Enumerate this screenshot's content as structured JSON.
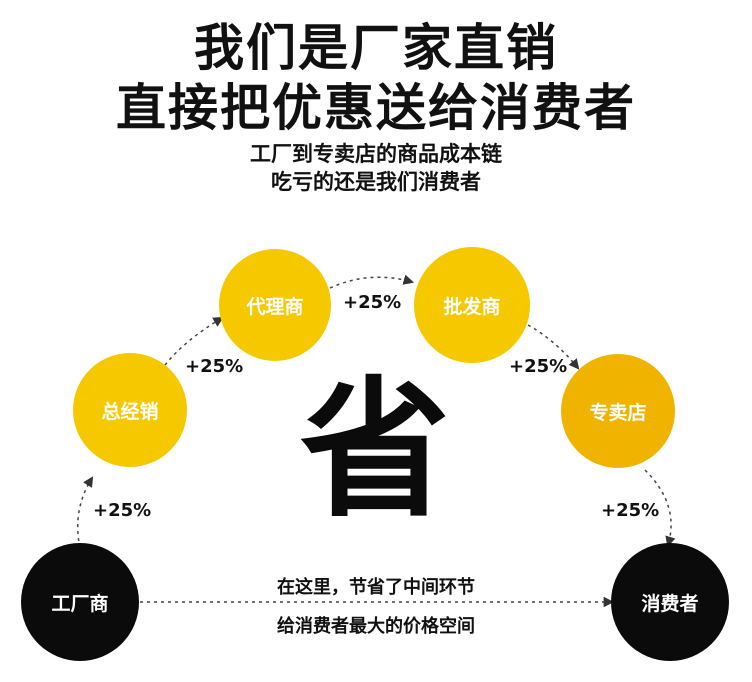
{
  "headline": {
    "line1": "我们是厂家直销",
    "line2": "直接把优惠送给消费者"
  },
  "subhead": {
    "line1": "工厂到专卖店的商品成本链",
    "line2": "吃亏的还是我们消费者"
  },
  "chain": {
    "factory": "工厂商",
    "general_agent": "总经销",
    "agent": "代理商",
    "wholesaler": "批发商",
    "store": "专卖店",
    "consumer": "消费者"
  },
  "markups": {
    "factory_to_general": "+25%",
    "general_to_agent": "+25%",
    "agent_to_wholesaler": "+25%",
    "wholesaler_to_store": "+25%",
    "store_to_consumer": "+25%"
  },
  "center_char": "省",
  "bottom_note": {
    "line1": "在这里，节省了中间环节",
    "line2": "给消费者最大的价格空间"
  },
  "colors": {
    "yellow": "#f5c800",
    "amber": "#f0b400",
    "black": "#0b0b0b"
  }
}
